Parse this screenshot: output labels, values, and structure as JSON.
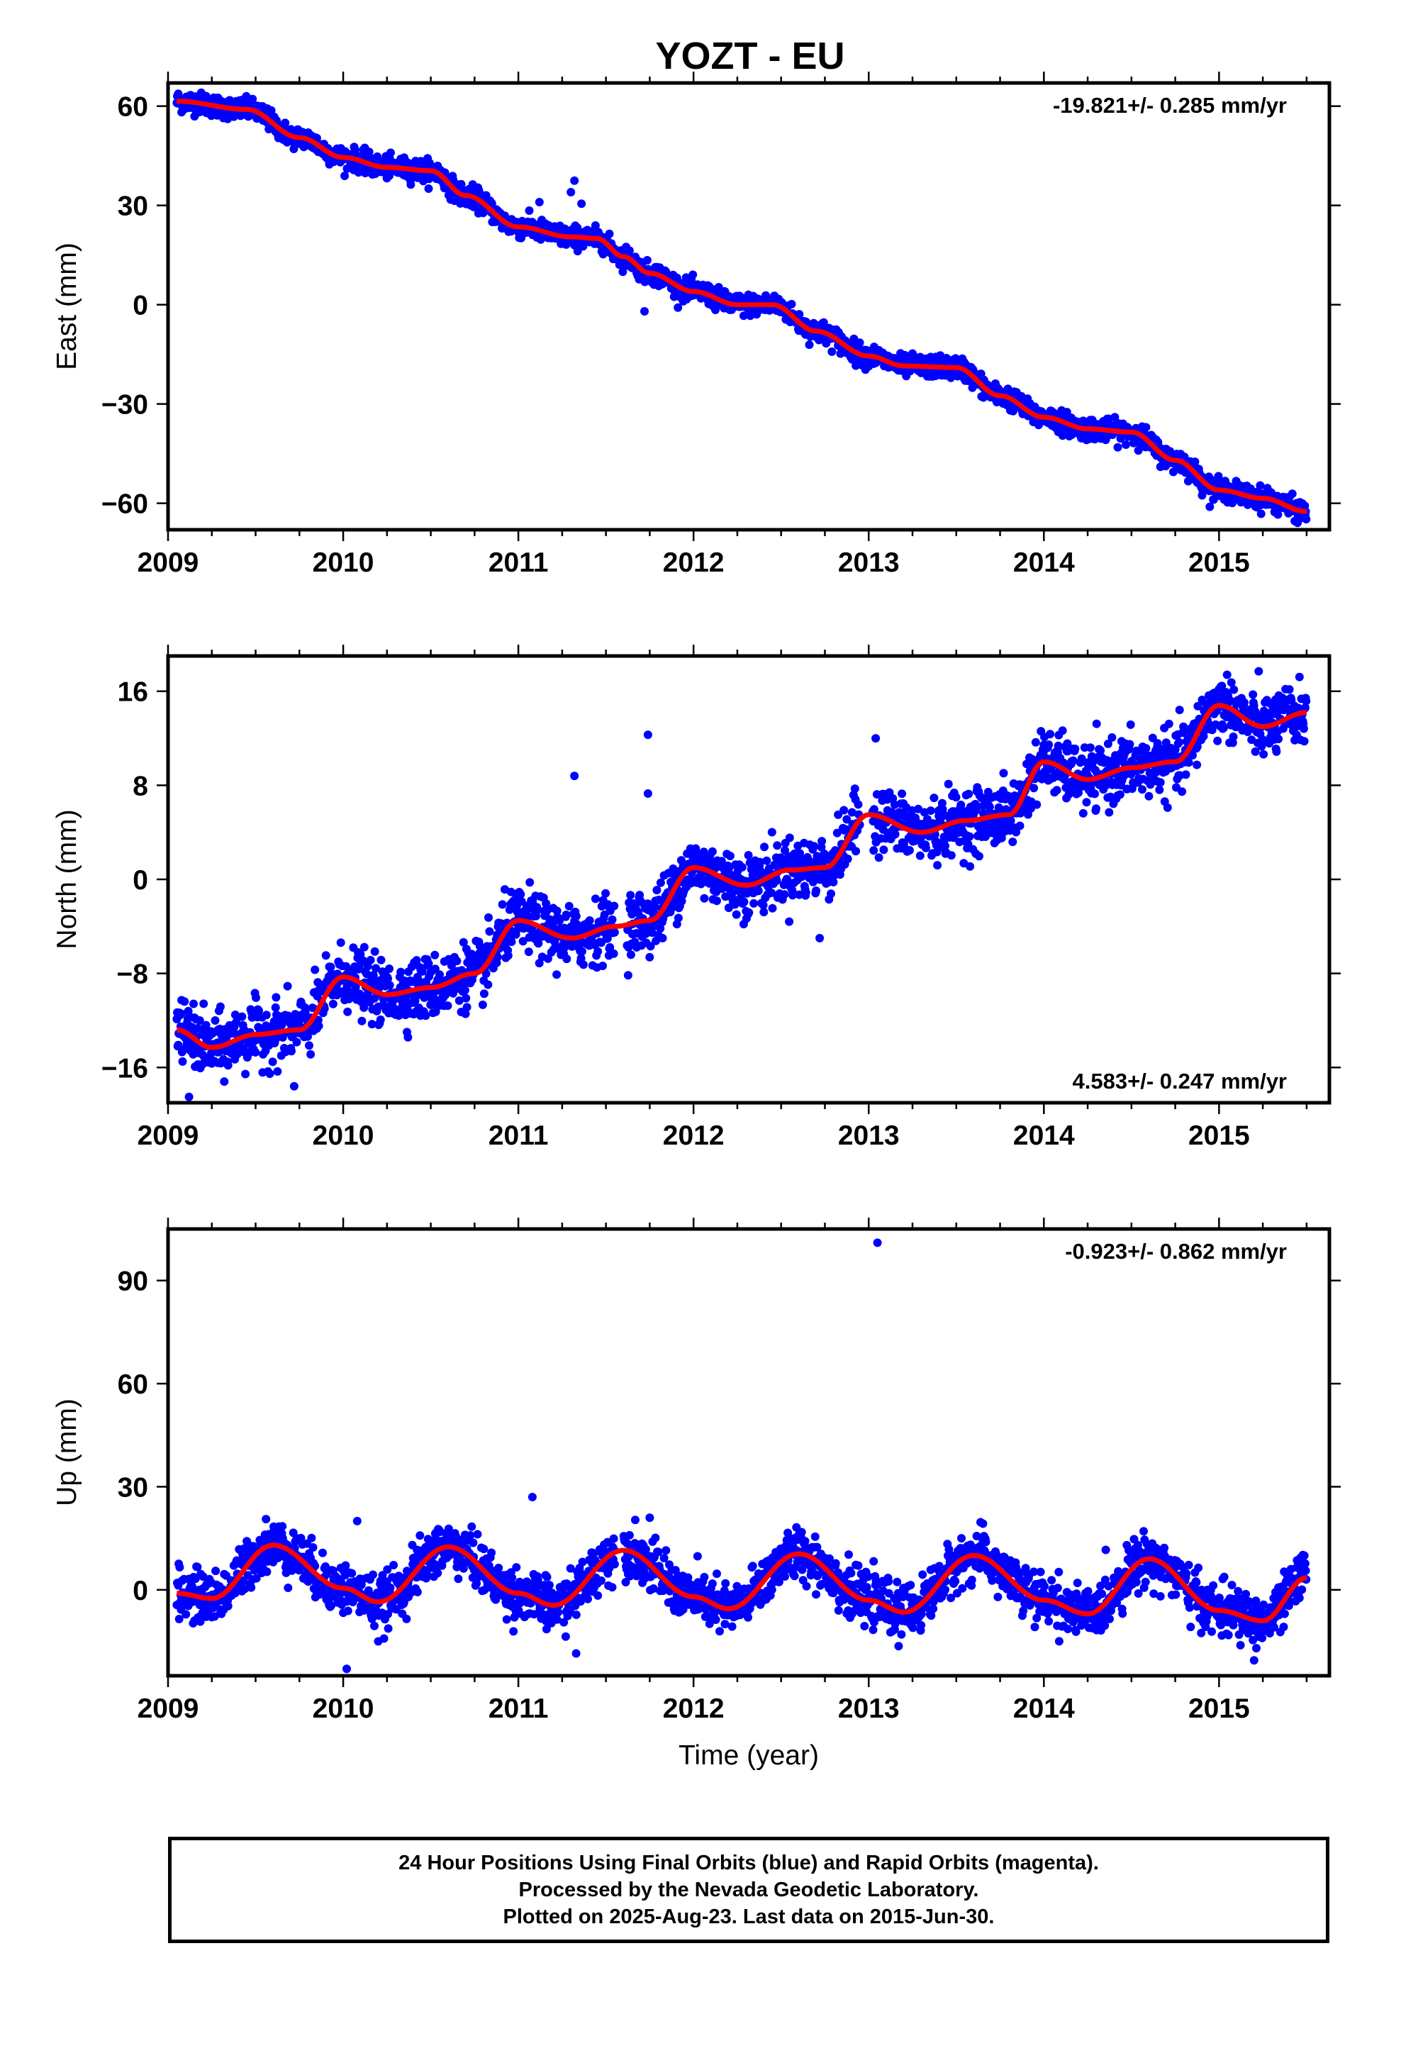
{
  "title": "YOZT - EU",
  "colors": {
    "final_points": "#0000ff",
    "model_line": "#ff0000",
    "frame": "#000000"
  },
  "chart_data": [
    {
      "type": "scatter",
      "id": "east",
      "ylabel": "East (mm)",
      "xlabel": "",
      "xlim": [
        2009.0,
        2015.63
      ],
      "ylim": [
        -68,
        67
      ],
      "xticks": [
        2009,
        2010,
        2011,
        2012,
        2013,
        2014,
        2015
      ],
      "yticks": [
        60,
        30,
        0,
        -30,
        -60
      ],
      "ytick_labels": [
        "60",
        "30",
        "0",
        "−30",
        "−60"
      ],
      "rate_label": "-19.821+/- 0.285 mm/yr",
      "rate_position": "top-right",
      "noise": 1.6,
      "data_start": 2009.05,
      "data_end": 2015.5,
      "gaps": [],
      "trend": [
        [
          2009.05,
          61.5
        ],
        [
          2009.45,
          59.0
        ],
        [
          2009.75,
          50.5
        ],
        [
          2010.0,
          44.5
        ],
        [
          2010.25,
          41.5
        ],
        [
          2010.5,
          40.5
        ],
        [
          2010.7,
          33.0
        ],
        [
          2011.0,
          23.5
        ],
        [
          2011.3,
          20.5
        ],
        [
          2011.45,
          20.0
        ],
        [
          2011.6,
          14.5
        ],
        [
          2011.75,
          9.5
        ],
        [
          2012.0,
          4.0
        ],
        [
          2012.25,
          0.0
        ],
        [
          2012.45,
          0.0
        ],
        [
          2012.7,
          -8.0
        ],
        [
          2013.0,
          -15.5
        ],
        [
          2013.2,
          -18.5
        ],
        [
          2013.5,
          -19.0
        ],
        [
          2013.75,
          -27.5
        ],
        [
          2014.0,
          -34.0
        ],
        [
          2014.25,
          -37.5
        ],
        [
          2014.5,
          -38.5
        ],
        [
          2014.75,
          -47.0
        ],
        [
          2015.0,
          -56.0
        ],
        [
          2015.25,
          -58.5
        ],
        [
          2015.5,
          -62.5
        ]
      ],
      "outliers": [
        [
          2011.32,
          37.5
        ],
        [
          2011.3,
          34.0
        ],
        [
          2011.12,
          31.0
        ],
        [
          2011.36,
          30.5
        ],
        [
          2011.72,
          -2.0
        ]
      ]
    },
    {
      "type": "scatter",
      "id": "north",
      "ylabel": "North (mm)",
      "xlabel": "",
      "xlim": [
        2009.0,
        2015.63
      ],
      "ylim": [
        -19,
        19
      ],
      "xticks": [
        2009,
        2010,
        2011,
        2012,
        2013,
        2014,
        2015
      ],
      "yticks": [
        16,
        8,
        0,
        -8,
        -16
      ],
      "ytick_labels": [
        "16",
        "8",
        "0",
        "−8",
        "−16"
      ],
      "rate_label": "4.583+/- 0.247 mm/yr",
      "rate_position": "bottom-right",
      "noise": 1.3,
      "data_start": 2009.05,
      "data_end": 2015.5,
      "gaps": [
        [
          2011.55,
          2011.62
        ],
        [
          2012.95,
          2013.02
        ]
      ],
      "trend": [
        [
          2009.05,
          -12.8
        ],
        [
          2009.25,
          -14.3
        ],
        [
          2009.5,
          -13.2
        ],
        [
          2009.75,
          -12.8
        ],
        [
          2010.0,
          -8.3
        ],
        [
          2010.25,
          -9.8
        ],
        [
          2010.5,
          -9.2
        ],
        [
          2010.75,
          -8.0
        ],
        [
          2011.0,
          -3.5
        ],
        [
          2011.3,
          -5.0
        ],
        [
          2011.55,
          -4.0
        ],
        [
          2011.75,
          -3.5
        ],
        [
          2012.0,
          1.0
        ],
        [
          2012.3,
          -0.5
        ],
        [
          2012.55,
          0.8
        ],
        [
          2012.75,
          1.0
        ],
        [
          2013.0,
          5.5
        ],
        [
          2013.3,
          4.0
        ],
        [
          2013.55,
          5.0
        ],
        [
          2013.8,
          5.5
        ],
        [
          2014.0,
          10.0
        ],
        [
          2014.25,
          8.5
        ],
        [
          2014.5,
          9.5
        ],
        [
          2014.75,
          10.0
        ],
        [
          2015.0,
          14.8
        ],
        [
          2015.25,
          13.0
        ],
        [
          2015.5,
          14.2
        ]
      ],
      "outliers": [
        [
          2011.32,
          8.8
        ],
        [
          2011.74,
          12.3
        ],
        [
          2011.74,
          7.3
        ],
        [
          2013.04,
          12.0
        ],
        [
          2009.12,
          -18.5
        ],
        [
          2009.72,
          -17.6
        ],
        [
          2012.72,
          -5.0
        ]
      ]
    },
    {
      "type": "scatter",
      "id": "up",
      "ylabel": "Up (mm)",
      "xlabel": "Time (year)",
      "xlim": [
        2009.0,
        2015.63
      ],
      "ylim": [
        -25,
        105
      ],
      "xticks": [
        2009,
        2010,
        2011,
        2012,
        2013,
        2014,
        2015
      ],
      "yticks": [
        90,
        60,
        30,
        0
      ],
      "ytick_labels": [
        "90",
        "60",
        "30",
        "0"
      ],
      "rate_label": "-0.923+/- 0.862 mm/yr",
      "rate_position": "top-right",
      "noise": 3.6,
      "data_start": 2009.05,
      "data_end": 2015.5,
      "gaps": [
        [
          2011.55,
          2011.6
        ]
      ],
      "trend": [
        [
          2009.05,
          -1.0
        ],
        [
          2009.25,
          -2.5
        ],
        [
          2009.6,
          13.0
        ],
        [
          2010.0,
          0.5
        ],
        [
          2010.2,
          -3.5
        ],
        [
          2010.6,
          12.5
        ],
        [
          2011.0,
          -1.0
        ],
        [
          2011.2,
          -4.5
        ],
        [
          2011.6,
          11.5
        ],
        [
          2012.0,
          -2.0
        ],
        [
          2012.2,
          -5.5
        ],
        [
          2012.6,
          10.5
        ],
        [
          2013.0,
          -3.0
        ],
        [
          2013.2,
          -6.5
        ],
        [
          2013.6,
          10.0
        ],
        [
          2014.0,
          -3.0
        ],
        [
          2014.25,
          -7.0
        ],
        [
          2014.6,
          9.0
        ],
        [
          2015.0,
          -6.0
        ],
        [
          2015.25,
          -9.0
        ],
        [
          2015.5,
          3.5
        ]
      ],
      "outliers": [
        [
          2013.05,
          101.0
        ],
        [
          2011.08,
          27.0
        ],
        [
          2011.75,
          21.0
        ],
        [
          2010.08,
          20.0
        ],
        [
          2010.02,
          -23.0
        ],
        [
          2010.2,
          -15.0
        ],
        [
          2011.33,
          -18.5
        ],
        [
          2015.2,
          -20.5
        ]
      ]
    }
  ],
  "footer": {
    "line1": "24 Hour Positions Using Final Orbits (blue) and Rapid Orbits (magenta).",
    "line2": "Processed by the Nevada Geodetic Laboratory.",
    "line3": "Plotted on 2025-Aug-23. Last data on 2015-Jun-30."
  }
}
